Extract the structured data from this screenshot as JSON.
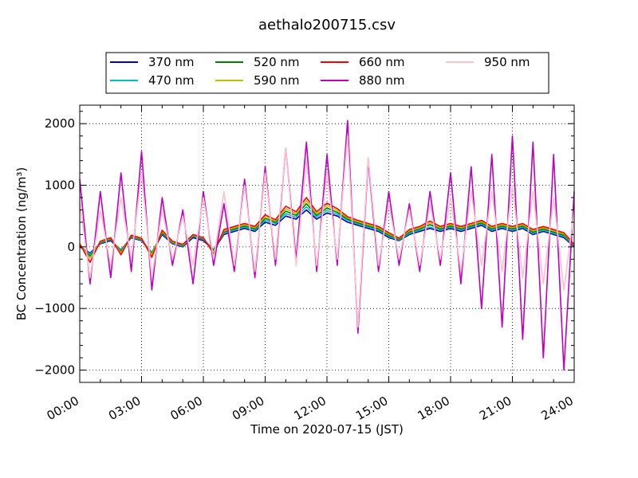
{
  "chart_data": {
    "type": "line",
    "title": "aethalo200715.csv",
    "xlabel": "Time on 2020-07-15 (JST)",
    "ylabel": "BC Concentration (ng/m³)",
    "xlim": [
      "2020-07-15 00:00",
      "2020-07-16 00:00"
    ],
    "ylim": [
      -2200,
      2300
    ],
    "x_tick_labels": [
      "00:00",
      "03:00",
      "06:00",
      "09:00",
      "12:00",
      "15:00",
      "18:00",
      "21:00",
      "24:00"
    ],
    "y_tick_values": [
      -2000,
      -1000,
      0,
      1000,
      2000
    ],
    "y_tick_labels": [
      "−2000",
      "−1000",
      "0",
      "1000",
      "2000"
    ],
    "grid": true,
    "legend_position": "top-center",
    "x": [
      "00:00",
      "00:30",
      "01:00",
      "01:30",
      "02:00",
      "02:30",
      "03:00",
      "03:30",
      "04:00",
      "04:30",
      "05:00",
      "05:30",
      "06:00",
      "06:30",
      "07:00",
      "07:30",
      "08:00",
      "08:30",
      "09:00",
      "09:30",
      "10:00",
      "10:30",
      "11:00",
      "11:30",
      "12:00",
      "12:30",
      "13:00",
      "13:30",
      "14:00",
      "14:30",
      "15:00",
      "15:30",
      "16:00",
      "16:30",
      "17:00",
      "17:30",
      "18:00",
      "18:30",
      "19:00",
      "19:30",
      "20:00",
      "20:30",
      "21:00",
      "21:30",
      "22:00",
      "22:30",
      "23:00",
      "23:30",
      "24:00"
    ],
    "series": [
      {
        "name": "370 nm",
        "color": "#0000cc",
        "values": [
          0,
          -100,
          50,
          100,
          -50,
          150,
          100,
          -100,
          200,
          50,
          0,
          150,
          100,
          -50,
          200,
          250,
          300,
          250,
          400,
          350,
          500,
          450,
          600,
          450,
          550,
          500,
          400,
          350,
          300,
          250,
          150,
          100,
          200,
          250,
          300,
          250,
          300,
          250,
          300,
          350,
          250,
          300,
          250,
          300,
          200,
          250,
          200,
          150,
          0
        ]
      },
      {
        "name": "470 nm",
        "color": "#00bfbf",
        "values": [
          20,
          -120,
          60,
          120,
          -60,
          160,
          110,
          -90,
          220,
          60,
          10,
          170,
          120,
          -40,
          220,
          270,
          320,
          270,
          430,
          380,
          540,
          480,
          650,
          480,
          590,
          530,
          430,
          370,
          320,
          270,
          170,
          110,
          220,
          270,
          320,
          270,
          320,
          270,
          320,
          370,
          270,
          320,
          270,
          320,
          220,
          270,
          220,
          170,
          10
        ]
      },
      {
        "name": "520 nm",
        "color": "#007f00",
        "values": [
          30,
          -150,
          70,
          130,
          -80,
          170,
          120,
          -110,
          230,
          70,
          20,
          180,
          130,
          -60,
          240,
          290,
          340,
          290,
          460,
          400,
          580,
          510,
          700,
          510,
          630,
          560,
          450,
          390,
          340,
          290,
          190,
          120,
          240,
          290,
          360,
          290,
          340,
          290,
          340,
          390,
          290,
          340,
          290,
          340,
          240,
          290,
          240,
          190,
          20
        ]
      },
      {
        "name": "590 nm",
        "color": "#bfbf00",
        "values": [
          40,
          -180,
          80,
          140,
          -100,
          180,
          130,
          -130,
          250,
          80,
          30,
          190,
          140,
          -80,
          260,
          310,
          360,
          310,
          490,
          420,
          620,
          540,
          750,
          540,
          670,
          590,
          470,
          410,
          360,
          310,
          210,
          130,
          260,
          310,
          390,
          310,
          360,
          310,
          360,
          410,
          310,
          360,
          310,
          360,
          260,
          310,
          260,
          210,
          30
        ]
      },
      {
        "name": "660 nm",
        "color": "#ff0000",
        "values": [
          50,
          -250,
          90,
          150,
          -130,
          190,
          140,
          -170,
          270,
          90,
          40,
          200,
          150,
          -110,
          280,
          330,
          380,
          330,
          520,
          440,
          660,
          570,
          800,
          570,
          710,
          620,
          490,
          430,
          380,
          330,
          230,
          140,
          280,
          330,
          420,
          330,
          380,
          330,
          380,
          430,
          330,
          380,
          330,
          380,
          280,
          330,
          280,
          230,
          40
        ]
      },
      {
        "name": "880 nm",
        "color": "#bf00bf",
        "values": [
          1100,
          -600,
          900,
          -500,
          1200,
          -400,
          1550,
          -700,
          800,
          -300,
          600,
          -600,
          900,
          -300,
          700,
          -400,
          1100,
          -500,
          1300,
          -300,
          1600,
          -200,
          1700,
          -400,
          1500,
          -300,
          2050,
          -1400,
          1400,
          -400,
          900,
          -300,
          700,
          -400,
          900,
          -300,
          1200,
          -600,
          1300,
          -1000,
          1500,
          -1300,
          1800,
          -1500,
          1700,
          -1800,
          1500,
          -2000,
          900
        ]
      },
      {
        "name": "950 nm",
        "color": "#ffc0cb",
        "values": [
          700,
          -500,
          600,
          -300,
          800,
          -200,
          1200,
          -500,
          600,
          -200,
          500,
          -300,
          800,
          -200,
          900,
          -300,
          1000,
          -400,
          1200,
          -200,
          1600,
          -300,
          1400,
          -300,
          1200,
          -200,
          1800,
          -1300,
          1450,
          -300,
          700,
          -200,
          600,
          -300,
          700,
          -200,
          800,
          -400,
          900,
          -300,
          900,
          -400,
          1000,
          -500,
          900,
          -600,
          800,
          -700,
          600
        ]
      }
    ]
  }
}
